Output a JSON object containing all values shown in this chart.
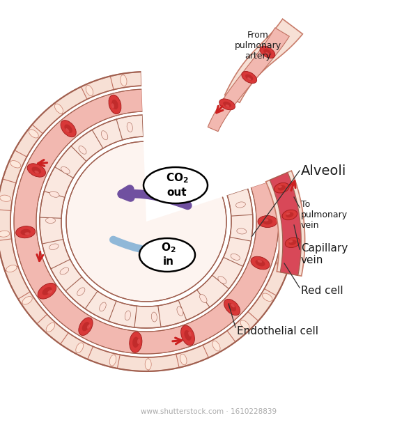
{
  "background_color": "#ffffff",
  "watermark": "www.shutterstock.com · 1610228839",
  "labels": {
    "from_pulmonary": "From\npulmonary\nartery",
    "alveoli": "Alveoli",
    "to_pulmonary": "To\npulmonary\nvein",
    "capillary_vein": "Capillary\nvein",
    "red_cell": "Red cell",
    "endothelial_cell": "Endothelial cell"
  },
  "colors": {
    "tissue_fill": "#f7e0d5",
    "tissue_stroke": "#c87c6a",
    "tissue_cell_fill": "#f0cfc0",
    "blood_channel_fill": "#f2b8b0",
    "blood_dark_fill": "#e06060",
    "alveolus_wall_fill": "#fae8e0",
    "alveolus_inner_fill": "#fdf4f0",
    "capillary_vein_fill": "#d04050",
    "capillary_vein_bg": "#e87080",
    "rbc_fill": "#d83838",
    "rbc_dark": "#a01818",
    "rbc_highlight": "#f06060",
    "co2_arrow": "#7050a0",
    "o2_arrow": "#90b8d8",
    "cell_wall": "#c07060",
    "cell_wall_dark": "#a06050",
    "red_arrow": "#cc2020",
    "label_line": "#303030",
    "text_color": "#1a1a1a"
  }
}
